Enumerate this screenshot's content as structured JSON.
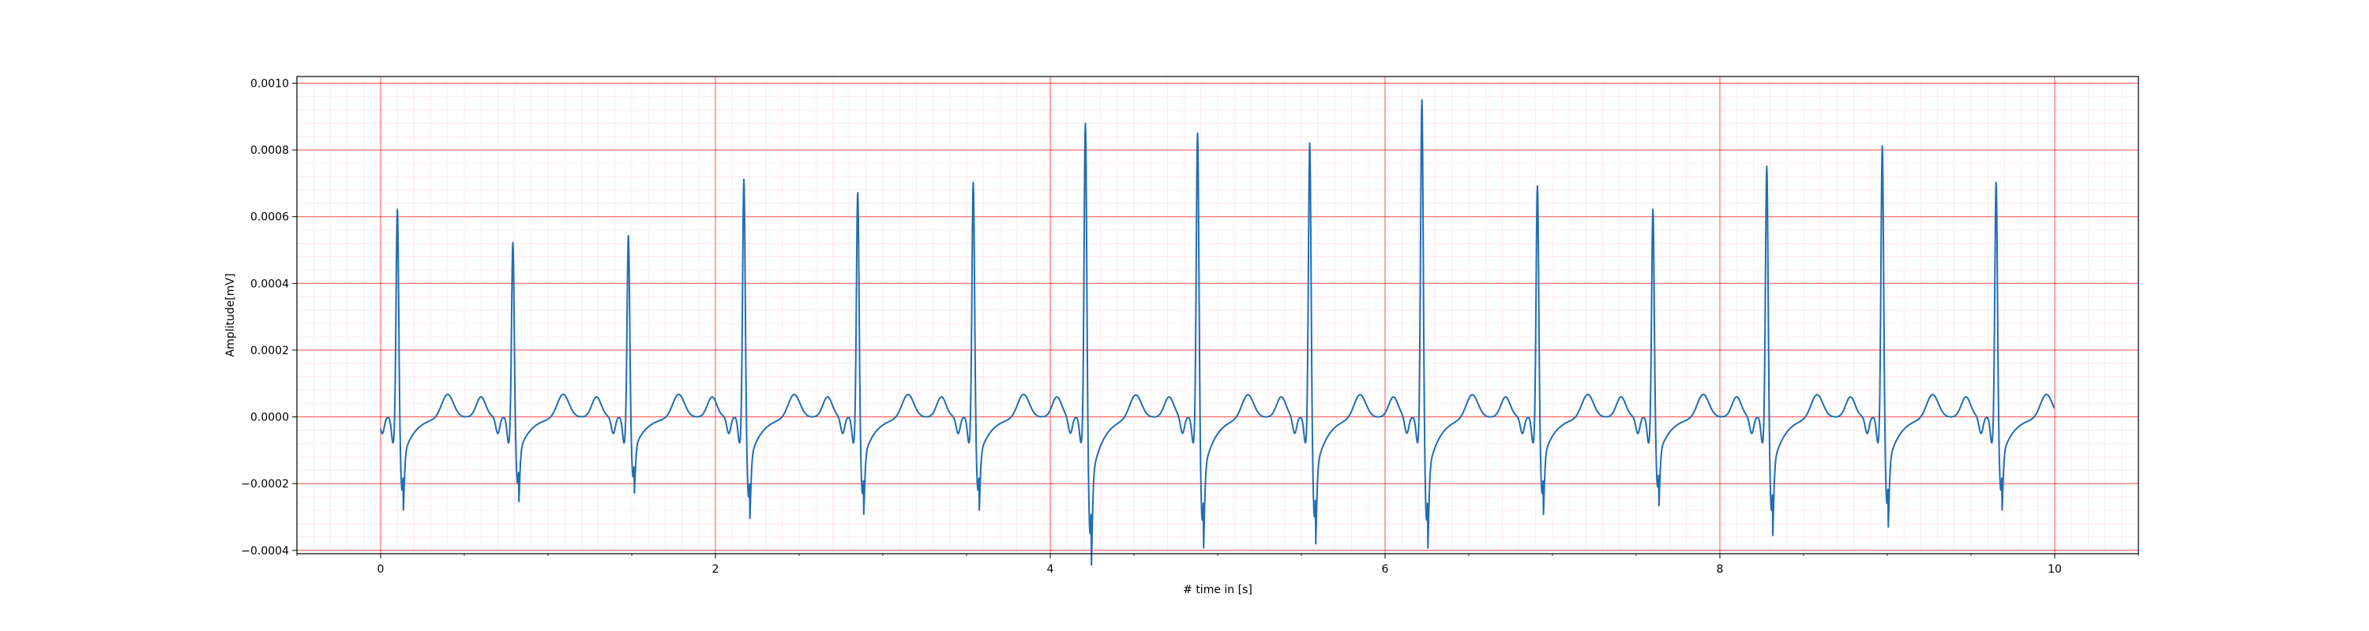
{
  "chart_data": {
    "type": "line",
    "title": "",
    "xlabel": "# time in [s]",
    "ylabel": "Amplitude[mV]",
    "xlim": [
      -0.5,
      10.5
    ],
    "ylim": [
      -0.00041,
      0.00102
    ],
    "grid": true,
    "grid_color": "#ff0000",
    "minor_grid_color": "#ffb0c8",
    "series_color": "#1f6eb4",
    "x_ticks": [
      0,
      2,
      4,
      6,
      8,
      10
    ],
    "x_tick_labels": [
      "0",
      "2",
      "4",
      "6",
      "8",
      "10"
    ],
    "y_ticks": [
      -0.0004,
      -0.0002,
      0.0,
      0.0002,
      0.0004,
      0.0006,
      0.0008,
      0.001
    ],
    "y_tick_labels": [
      "−0.0004",
      "−0.0002",
      "0.0000",
      "0.0002",
      "0.0004",
      "0.0006",
      "0.0008",
      "0.0010"
    ],
    "series": [
      {
        "beats": [
          {
            "t": 0.1,
            "r": 0.00063,
            "s": -0.00022
          },
          {
            "t": 0.79,
            "r": 0.00053,
            "s": -0.0002
          },
          {
            "t": 1.48,
            "r": 0.00055,
            "s": -0.00018
          },
          {
            "t": 2.17,
            "r": 0.00072,
            "s": -0.00024
          },
          {
            "t": 2.85,
            "r": 0.00068,
            "s": -0.00023
          },
          {
            "t": 3.54,
            "r": 0.00071,
            "s": -0.00022
          },
          {
            "t": 4.21,
            "r": 0.00089,
            "s": -0.00035
          },
          {
            "t": 4.88,
            "r": 0.00086,
            "s": -0.00031
          },
          {
            "t": 5.55,
            "r": 0.00083,
            "s": -0.0003
          },
          {
            "t": 6.22,
            "r": 0.00096,
            "s": -0.00031
          },
          {
            "t": 6.91,
            "r": 0.0007,
            "s": -0.00023
          },
          {
            "t": 7.6,
            "r": 0.00063,
            "s": -0.00021
          },
          {
            "t": 8.28,
            "r": 0.00076,
            "s": -0.00028
          },
          {
            "t": 8.97,
            "r": 0.00082,
            "s": -0.00026
          },
          {
            "t": 9.65,
            "r": 0.00071,
            "s": -0.00022
          }
        ]
      }
    ]
  }
}
